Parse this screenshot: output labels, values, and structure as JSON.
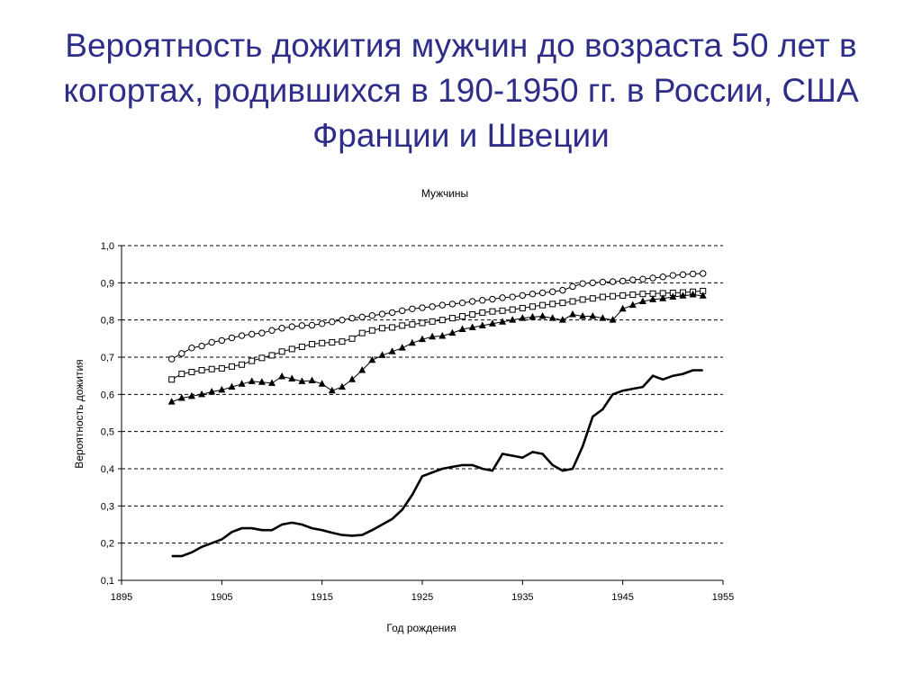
{
  "slide": {
    "title": "Вероятность дожития мужчин до возраста 50 лет в когортах, родившихся в 190-1950 гг. в России, США Франции и Швеции"
  },
  "chart_data": {
    "type": "line",
    "title": "Мужчины",
    "xlabel": "Год рождения",
    "ylabel": "Вероятность дожития",
    "xlim": [
      1895,
      1955
    ],
    "ylim": [
      0.1,
      1.0
    ],
    "xticks": [
      "1895",
      "1905",
      "1915",
      "1925",
      "1935",
      "1945",
      "1955"
    ],
    "yticks": [
      "0,1",
      "0,2",
      "0,3",
      "0,4",
      "0,5",
      "0,6",
      "0,7",
      "0,8",
      "0,9",
      "1,0"
    ],
    "grid": "horizontal-dashed",
    "legend": "none",
    "series": [
      {
        "marker": "circle-open",
        "color": "#000000",
        "x": [
          1900,
          1901,
          1902,
          1903,
          1904,
          1905,
          1906,
          1907,
          1908,
          1909,
          1910,
          1911,
          1912,
          1913,
          1914,
          1915,
          1916,
          1917,
          1918,
          1919,
          1920,
          1921,
          1922,
          1923,
          1924,
          1925,
          1926,
          1927,
          1928,
          1929,
          1930,
          1931,
          1932,
          1933,
          1934,
          1935,
          1936,
          1937,
          1938,
          1939,
          1940,
          1941,
          1942,
          1943,
          1944,
          1945,
          1946,
          1947,
          1948,
          1949,
          1950,
          1951,
          1952,
          1953
        ],
        "y": [
          0.695,
          0.71,
          0.725,
          0.73,
          0.74,
          0.745,
          0.752,
          0.758,
          0.762,
          0.765,
          0.772,
          0.778,
          0.782,
          0.785,
          0.786,
          0.79,
          0.795,
          0.8,
          0.805,
          0.808,
          0.812,
          0.816,
          0.82,
          0.825,
          0.83,
          0.833,
          0.836,
          0.84,
          0.843,
          0.846,
          0.85,
          0.853,
          0.856,
          0.86,
          0.862,
          0.866,
          0.87,
          0.873,
          0.876,
          0.88,
          0.89,
          0.898,
          0.9,
          0.902,
          0.903,
          0.905,
          0.908,
          0.91,
          0.913,
          0.916,
          0.92,
          0.922,
          0.924,
          0.925
        ]
      },
      {
        "marker": "square-open",
        "color": "#000000",
        "x": [
          1900,
          1901,
          1902,
          1903,
          1904,
          1905,
          1906,
          1907,
          1908,
          1909,
          1910,
          1911,
          1912,
          1913,
          1914,
          1915,
          1916,
          1917,
          1918,
          1919,
          1920,
          1921,
          1922,
          1923,
          1924,
          1925,
          1926,
          1927,
          1928,
          1929,
          1930,
          1931,
          1932,
          1933,
          1934,
          1935,
          1936,
          1937,
          1938,
          1939,
          1940,
          1941,
          1942,
          1943,
          1944,
          1945,
          1946,
          1947,
          1948,
          1949,
          1950,
          1951,
          1952,
          1953
        ],
        "y": [
          0.64,
          0.655,
          0.66,
          0.665,
          0.668,
          0.67,
          0.675,
          0.68,
          0.69,
          0.698,
          0.705,
          0.715,
          0.722,
          0.728,
          0.735,
          0.738,
          0.74,
          0.742,
          0.75,
          0.765,
          0.772,
          0.778,
          0.78,
          0.785,
          0.788,
          0.792,
          0.796,
          0.8,
          0.805,
          0.81,
          0.815,
          0.82,
          0.823,
          0.825,
          0.828,
          0.832,
          0.836,
          0.84,
          0.843,
          0.846,
          0.85,
          0.855,
          0.858,
          0.862,
          0.864,
          0.866,
          0.868,
          0.87,
          0.871,
          0.872,
          0.873,
          0.874,
          0.876,
          0.878
        ]
      },
      {
        "marker": "triangle-filled",
        "color": "#000000",
        "x": [
          1900,
          1901,
          1902,
          1903,
          1904,
          1905,
          1906,
          1907,
          1908,
          1909,
          1910,
          1911,
          1912,
          1913,
          1914,
          1915,
          1916,
          1917,
          1918,
          1919,
          1920,
          1921,
          1922,
          1923,
          1924,
          1925,
          1926,
          1927,
          1928,
          1929,
          1930,
          1931,
          1932,
          1933,
          1934,
          1935,
          1936,
          1937,
          1938,
          1939,
          1940,
          1941,
          1942,
          1943,
          1944,
          1945,
          1946,
          1947,
          1948,
          1949,
          1950,
          1951,
          1952,
          1953
        ],
        "y": [
          0.58,
          0.59,
          0.595,
          0.6,
          0.607,
          0.612,
          0.62,
          0.628,
          0.635,
          0.633,
          0.63,
          0.648,
          0.642,
          0.635,
          0.637,
          0.628,
          0.61,
          0.62,
          0.64,
          0.665,
          0.692,
          0.705,
          0.715,
          0.725,
          0.738,
          0.748,
          0.755,
          0.757,
          0.765,
          0.775,
          0.78,
          0.785,
          0.79,
          0.795,
          0.8,
          0.805,
          0.808,
          0.81,
          0.805,
          0.8,
          0.815,
          0.81,
          0.81,
          0.805,
          0.8,
          0.83,
          0.84,
          0.85,
          0.855,
          0.858,
          0.862,
          0.865,
          0.868,
          0.865
        ]
      },
      {
        "marker": "none",
        "color": "#000000",
        "x": [
          1900,
          1901,
          1902,
          1903,
          1904,
          1905,
          1906,
          1907,
          1908,
          1909,
          1910,
          1911,
          1912,
          1913,
          1914,
          1915,
          1916,
          1917,
          1918,
          1919,
          1920,
          1921,
          1922,
          1923,
          1924,
          1925,
          1926,
          1927,
          1928,
          1929,
          1930,
          1931,
          1932,
          1933,
          1934,
          1935,
          1936,
          1937,
          1938,
          1939,
          1940,
          1941,
          1942,
          1943,
          1944,
          1945,
          1946,
          1947,
          1948,
          1949,
          1950,
          1951,
          1952,
          1953
        ],
        "y": [
          0.165,
          0.165,
          0.175,
          0.19,
          0.2,
          0.21,
          0.23,
          0.24,
          0.24,
          0.235,
          0.235,
          0.25,
          0.255,
          0.25,
          0.24,
          0.235,
          0.228,
          0.222,
          0.22,
          0.222,
          0.235,
          0.25,
          0.265,
          0.29,
          0.33,
          0.38,
          0.39,
          0.4,
          0.405,
          0.41,
          0.41,
          0.4,
          0.395,
          0.44,
          0.435,
          0.43,
          0.445,
          0.44,
          0.41,
          0.395,
          0.4,
          0.46,
          0.54,
          0.56,
          0.6,
          0.61,
          0.615,
          0.62,
          0.65,
          0.64,
          0.65,
          0.655,
          0.665,
          0.665
        ]
      }
    ]
  }
}
